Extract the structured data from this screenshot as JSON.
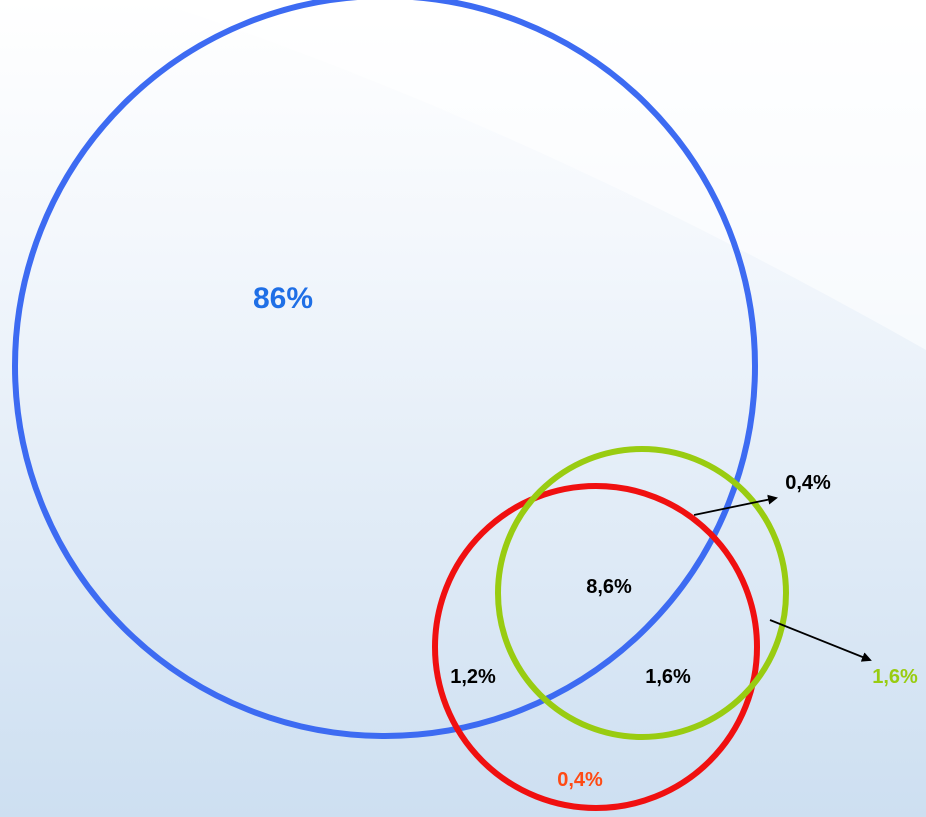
{
  "diagram": {
    "type": "venn",
    "labels": {
      "blue_only": "86%",
      "top_arrow": "0,4%",
      "center": "8,6%",
      "left_overlap": "1,2%",
      "right_overlap": "1,6%",
      "green_arrow": "1,6%",
      "red_only": "0,4%"
    },
    "colors": {
      "blue_circle": "#3d6bf2",
      "red_circle": "#f01010",
      "green_circle": "#99cc11",
      "blue_text": "#1f6fe6",
      "red_text": "#ff4a14",
      "green_text": "#99cc11",
      "black_text": "#000000",
      "background_top": "#ffffff",
      "background_bottom": "#cddff1"
    }
  }
}
